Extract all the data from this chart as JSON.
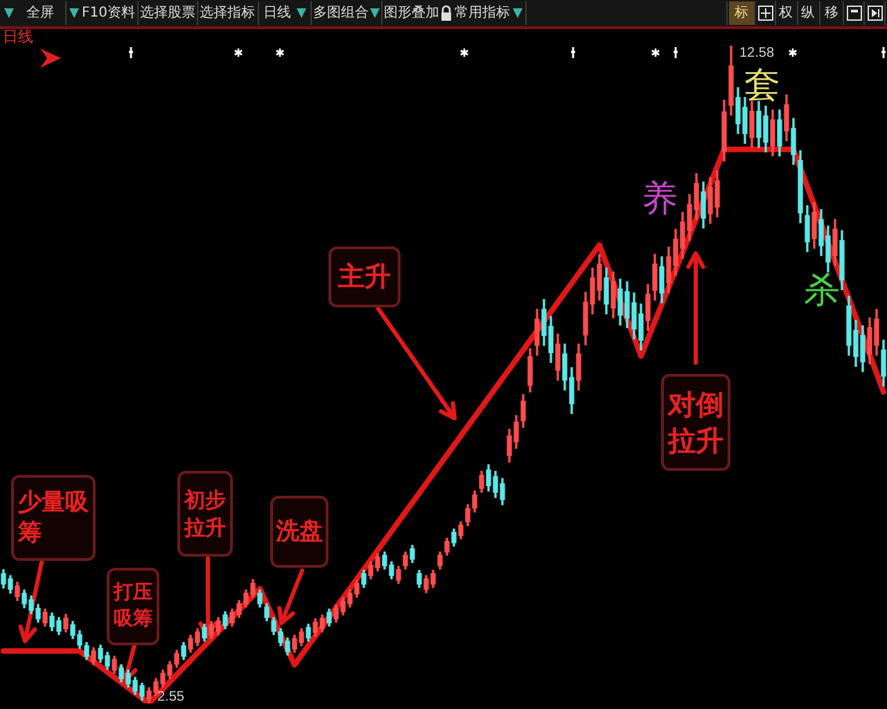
{
  "chart_data": [
    {
      "type": "other",
      "annotations": [
        "全屏",
        "F10资料",
        "选择股票",
        "选择指标",
        "日线",
        "多图组合",
        "图形叠加",
        "常用指标",
        "标",
        "权",
        "纵",
        "移"
      ]
    },
    {
      "type": "candlestick",
      "title": "日线",
      "categories": [
        null,
        null,
        null,
        null,
        null,
        null,
        null,
        null,
        null,
        null,
        null,
        null,
        null,
        null,
        null,
        null,
        null,
        null,
        null,
        null,
        null,
        null,
        null,
        null,
        null,
        null,
        null,
        null,
        null,
        null,
        null,
        null,
        null,
        null,
        null,
        null,
        null,
        null,
        null,
        null,
        null,
        null,
        null,
        null,
        null,
        null,
        null,
        null,
        null,
        null,
        null,
        null,
        null,
        null,
        null,
        null,
        null,
        null,
        null,
        null,
        null,
        null,
        null,
        null,
        null,
        null,
        null,
        null,
        null,
        null,
        null,
        null,
        null,
        null,
        null,
        null,
        null,
        null,
        null,
        null,
        null,
        null,
        null,
        null,
        null,
        null,
        null,
        null,
        null,
        null,
        null,
        null,
        null,
        null,
        null,
        null,
        null,
        null,
        null,
        null,
        null,
        null,
        null,
        null,
        null,
        null,
        null,
        null,
        null,
        null,
        null,
        null,
        null,
        null,
        null,
        null,
        null,
        null,
        null,
        null,
        null,
        null,
        null,
        null,
        null,
        null,
        null,
        null
      ],
      "ohlc": [
        [
          4.53,
          4.59,
          4.31,
          4.37
        ],
        [
          4.45,
          4.5,
          4.23,
          4.29
        ],
        [
          4.18,
          4.4,
          4.12,
          4.34
        ],
        [
          4.23,
          4.28,
          4.01,
          4.07
        ],
        [
          4.13,
          4.19,
          3.92,
          3.97
        ],
        [
          4.0,
          4.06,
          3.79,
          3.84
        ],
        [
          3.78,
          3.99,
          3.73,
          3.94
        ],
        [
          3.88,
          3.93,
          3.66,
          3.72
        ],
        [
          3.81,
          3.86,
          3.6,
          3.65
        ],
        [
          3.69,
          3.91,
          3.64,
          3.85
        ],
        [
          3.75,
          3.8,
          3.54,
          3.59
        ],
        [
          3.6,
          3.66,
          3.39,
          3.44
        ],
        [
          3.43,
          3.48,
          3.22,
          3.27
        ],
        [
          3.19,
          3.4,
          3.14,
          3.35
        ],
        [
          3.39,
          3.44,
          3.18,
          3.23
        ],
        [
          3.28,
          3.33,
          3.07,
          3.12
        ],
        [
          3.06,
          3.27,
          3.01,
          3.22
        ],
        [
          3.09,
          3.14,
          2.88,
          2.93
        ],
        [
          3.01,
          3.06,
          2.8,
          2.85
        ],
        [
          2.9,
          2.95,
          2.69,
          2.74
        ],
        [
          2.82,
          2.86,
          2.6,
          2.66
        ],
        [
          2.62,
          2.79,
          2.55,
          2.74
        ],
        [
          2.72,
          2.93,
          2.67,
          2.88
        ],
        [
          2.85,
          3.06,
          2.8,
          3.01
        ],
        [
          2.98,
          3.19,
          2.93,
          3.14
        ],
        [
          3.15,
          3.36,
          3.1,
          3.31
        ],
        [
          3.43,
          3.48,
          3.22,
          3.27
        ],
        [
          3.38,
          3.59,
          3.33,
          3.54
        ],
        [
          3.48,
          3.69,
          3.43,
          3.64
        ],
        [
          3.71,
          3.76,
          3.5,
          3.55
        ],
        [
          3.59,
          3.8,
          3.54,
          3.75
        ],
        [
          3.65,
          3.86,
          3.6,
          3.81
        ],
        [
          3.9,
          3.95,
          3.69,
          3.74
        ],
        [
          3.78,
          3.99,
          3.73,
          3.94
        ],
        [
          3.91,
          4.12,
          3.86,
          4.07
        ],
        [
          4.07,
          4.28,
          4.02,
          4.23
        ],
        [
          4.22,
          4.44,
          4.17,
          4.38
        ],
        [
          4.23,
          4.28,
          4.02,
          4.07
        ],
        [
          4.02,
          4.07,
          3.81,
          3.86
        ],
        [
          3.81,
          3.86,
          3.6,
          3.65
        ],
        [
          3.64,
          3.69,
          3.43,
          3.48
        ],
        [
          3.5,
          3.55,
          3.29,
          3.34
        ],
        [
          3.38,
          3.59,
          3.33,
          3.54
        ],
        [
          3.48,
          3.69,
          3.43,
          3.64
        ],
        [
          3.71,
          3.76,
          3.5,
          3.55
        ],
        [
          3.63,
          3.84,
          3.58,
          3.79
        ],
        [
          3.69,
          3.9,
          3.64,
          3.85
        ],
        [
          3.94,
          3.99,
          3.73,
          3.78
        ],
        [
          3.84,
          4.05,
          3.79,
          4.0
        ],
        [
          3.95,
          4.16,
          3.9,
          4.11
        ],
        [
          4.07,
          4.28,
          4.02,
          4.23
        ],
        [
          4.22,
          4.43,
          4.17,
          4.38
        ],
        [
          4.53,
          4.58,
          4.32,
          4.37
        ],
        [
          4.5,
          4.71,
          4.45,
          4.66
        ],
        [
          4.62,
          4.83,
          4.57,
          4.78
        ],
        [
          4.81,
          4.86,
          4.6,
          4.65
        ],
        [
          4.66,
          4.71,
          4.45,
          4.5
        ],
        [
          4.43,
          4.64,
          4.38,
          4.59
        ],
        [
          4.65,
          4.86,
          4.6,
          4.81
        ],
        [
          4.91,
          4.96,
          4.7,
          4.75
        ],
        [
          4.53,
          4.58,
          4.32,
          4.37
        ],
        [
          4.29,
          4.5,
          4.24,
          4.45
        ],
        [
          4.37,
          4.58,
          4.32,
          4.53
        ],
        [
          4.65,
          4.86,
          4.6,
          4.81
        ],
        [
          4.86,
          5.07,
          4.81,
          5.02
        ],
        [
          5.16,
          5.21,
          4.95,
          5.0
        ],
        [
          5.11,
          5.32,
          5.06,
          5.27
        ],
        [
          5.32,
          5.58,
          5.26,
          5.52
        ],
        [
          5.53,
          5.79,
          5.47,
          5.73
        ],
        [
          5.83,
          6.09,
          5.77,
          6.03
        ],
        [
          6.11,
          6.19,
          5.79,
          5.87
        ],
        [
          6.01,
          6.09,
          5.69,
          5.77
        ],
        [
          5.9,
          5.98,
          5.58,
          5.66
        ],
        [
          6.33,
          6.73,
          6.23,
          6.63
        ],
        [
          6.54,
          6.94,
          6.44,
          6.84
        ],
        [
          6.86,
          7.26,
          6.76,
          7.16
        ],
        [
          7.4,
          7.96,
          7.3,
          7.84
        ],
        [
          8.01,
          8.56,
          7.86,
          8.41
        ],
        [
          8.56,
          8.71,
          8.01,
          8.16
        ],
        [
          8.3,
          8.45,
          7.75,
          7.9
        ],
        [
          7.63,
          8.18,
          7.48,
          8.03
        ],
        [
          7.88,
          8.03,
          7.33,
          7.48
        ],
        [
          7.52,
          7.67,
          6.97,
          7.12
        ],
        [
          7.48,
          8.03,
          7.33,
          7.88
        ],
        [
          8.17,
          8.82,
          8.02,
          8.67
        ],
        [
          8.64,
          9.19,
          8.49,
          9.04
        ],
        [
          8.85,
          9.4,
          8.7,
          9.25
        ],
        [
          9.04,
          9.19,
          8.49,
          8.64
        ],
        [
          8.58,
          9.13,
          8.43,
          8.98
        ],
        [
          8.87,
          9.02,
          8.32,
          8.47
        ],
        [
          8.83,
          8.98,
          8.28,
          8.43
        ],
        [
          8.66,
          8.81,
          8.11,
          8.26
        ],
        [
          8.49,
          8.64,
          7.94,
          8.09
        ],
        [
          8.39,
          8.94,
          8.24,
          8.79
        ],
        [
          8.85,
          9.4,
          8.7,
          9.25
        ],
        [
          9.21,
          9.36,
          8.66,
          8.81
        ],
        [
          8.96,
          9.51,
          8.81,
          9.36
        ],
        [
          9.23,
          9.78,
          9.08,
          9.63
        ],
        [
          9.49,
          10.04,
          9.34,
          9.89
        ],
        [
          9.76,
          10.31,
          9.61,
          10.16
        ],
        [
          10.08,
          10.63,
          9.93,
          10.48
        ],
        [
          10.35,
          10.5,
          9.8,
          9.95
        ],
        [
          10.02,
          10.57,
          9.87,
          10.42
        ],
        [
          10.12,
          10.67,
          9.97,
          10.52
        ],
        [
          10.97,
          11.75,
          10.82,
          11.57
        ],
        [
          11.67,
          12.58,
          11.52,
          12.27
        ],
        [
          11.79,
          11.94,
          11.24,
          11.39
        ],
        [
          11.64,
          11.79,
          11.09,
          11.24
        ],
        [
          11.18,
          11.73,
          11.03,
          11.58
        ],
        [
          11.58,
          11.73,
          11.03,
          11.18
        ],
        [
          11.51,
          11.66,
          10.96,
          11.11
        ],
        [
          11.05,
          11.6,
          10.9,
          11.45
        ],
        [
          11.45,
          11.6,
          10.9,
          11.05
        ],
        [
          11.28,
          11.83,
          11.13,
          11.68
        ],
        [
          11.32,
          11.47,
          10.77,
          10.92
        ],
        [
          10.83,
          10.98,
          9.88,
          10.03
        ],
        [
          9.99,
          10.14,
          9.44,
          9.59
        ],
        [
          9.64,
          10.19,
          9.49,
          10.04
        ],
        [
          9.93,
          10.08,
          9.38,
          9.53
        ],
        [
          9.68,
          9.83,
          9.13,
          9.28
        ],
        [
          9.38,
          9.93,
          9.23,
          9.78
        ],
        [
          9.61,
          9.76,
          8.86,
          9.01
        ],
        [
          8.61,
          8.76,
          7.86,
          8.01
        ],
        [
          8.24,
          8.39,
          7.69,
          7.84
        ],
        [
          8.16,
          8.31,
          7.61,
          7.76
        ],
        [
          7.88,
          8.43,
          7.73,
          8.28
        ],
        [
          8.01,
          8.56,
          7.86,
          8.41
        ],
        [
          7.94,
          8.09,
          7.39,
          7.54
        ]
      ],
      "colors": [
        "#5ae8e8",
        "#5ae8e8",
        "#ff4c4c",
        "#5ae8e8",
        "#5ae8e8",
        "#5ae8e8",
        "#ff4c4c",
        "#5ae8e8",
        "#5ae8e8",
        "#ff4c4c",
        "#5ae8e8",
        "#5ae8e8",
        "#5ae8e8",
        "#ff4c4c",
        "#5ae8e8",
        "#5ae8e8",
        "#ff4c4c",
        "#5ae8e8",
        "#5ae8e8",
        "#5ae8e8",
        "#5ae8e8",
        "#ff4c4c",
        "#ff4c4c",
        "#ff4c4c",
        "#ff4c4c",
        "#ff4c4c",
        "#5ae8e8",
        "#ff4c4c",
        "#ff4c4c",
        "#5ae8e8",
        "#ff4c4c",
        "#ff4c4c",
        "#5ae8e8",
        "#ff4c4c",
        "#ff4c4c",
        "#ff4c4c",
        "#ff4c4c",
        "#5ae8e8",
        "#5ae8e8",
        "#5ae8e8",
        "#5ae8e8",
        "#5ae8e8",
        "#ff4c4c",
        "#ff4c4c",
        "#5ae8e8",
        "#ff4c4c",
        "#ff4c4c",
        "#5ae8e8",
        "#ff4c4c",
        "#ff4c4c",
        "#ff4c4c",
        "#ff4c4c",
        "#5ae8e8",
        "#ff4c4c",
        "#ff4c4c",
        "#5ae8e8",
        "#5ae8e8",
        "#ff4c4c",
        "#ff4c4c",
        "#5ae8e8",
        "#5ae8e8",
        "#ff4c4c",
        "#ff4c4c",
        "#ff4c4c",
        "#ff4c4c",
        "#5ae8e8",
        "#ff4c4c",
        "#ff4c4c",
        "#ff4c4c",
        "#ff4c4c",
        "#5ae8e8",
        "#5ae8e8",
        "#5ae8e8",
        "#ff4c4c",
        "#ff4c4c",
        "#ff4c4c",
        "#ff4c4c",
        "#ff4c4c",
        "#5ae8e8",
        "#5ae8e8",
        "#ff4c4c",
        "#5ae8e8",
        "#5ae8e8",
        "#ff4c4c",
        "#ff4c4c",
        "#ff4c4c",
        "#ff4c4c",
        "#5ae8e8",
        "#ff4c4c",
        "#5ae8e8",
        "#5ae8e8",
        "#5ae8e8",
        "#5ae8e8",
        "#ff4c4c",
        "#ff4c4c",
        "#5ae8e8",
        "#ff4c4c",
        "#ff4c4c",
        "#ff4c4c",
        "#ff4c4c",
        "#ff4c4c",
        "#5ae8e8",
        "#ff4c4c",
        "#ff4c4c",
        "#ff4c4c",
        "#ff4c4c",
        "#5ae8e8",
        "#5ae8e8",
        "#ff4c4c",
        "#5ae8e8",
        "#5ae8e8",
        "#ff4c4c",
        "#5ae8e8",
        "#ff4c4c",
        "#5ae8e8",
        "#5ae8e8",
        "#5ae8e8",
        "#ff4c4c",
        "#5ae8e8",
        "#5ae8e8",
        "#ff4c4c",
        "#5ae8e8",
        "#5ae8e8",
        "#5ae8e8",
        "#5ae8e8",
        "#ff4c4c",
        "#ff4c4c",
        "#5ae8e8"
      ],
      "series": [
        {
          "type": "line",
          "color": "#e01818",
          "values": [
            3.35,
            null,
            null,
            null,
            null,
            null,
            null,
            null,
            null,
            null,
            null,
            3.35,
            null,
            null,
            null,
            null,
            null,
            null,
            null,
            null,
            null,
            2.55,
            null,
            null,
            null,
            null,
            null,
            null,
            null,
            null,
            null,
            null,
            null,
            null,
            null,
            null,
            null,
            4.3,
            null,
            null,
            null,
            null,
            3.14,
            null,
            null,
            null,
            null,
            null,
            null,
            null,
            null,
            null,
            null,
            null,
            null,
            null,
            null,
            null,
            null,
            null,
            null,
            null,
            null,
            null,
            null,
            null,
            null,
            null,
            null,
            null,
            null,
            null,
            null,
            null,
            null,
            null,
            null,
            null,
            null,
            null,
            null,
            null,
            null,
            null,
            null,
            null,
            9.54,
            null,
            null,
            null,
            null,
            null,
            7.85,
            null,
            null,
            null,
            null,
            null,
            null,
            null,
            null,
            null,
            null,
            null,
            11.0,
            null,
            null,
            null,
            null,
            null,
            null,
            null,
            null,
            null,
            11.0,
            null,
            null,
            null,
            null,
            null,
            null,
            null,
            null,
            null,
            null,
            null,
            null,
            7.3
          ]
        }
      ],
      "annotations": [
        "少量吸筹",
        "打压吸筹",
        "初步拉升",
        "洗盘",
        "主升",
        "对倒拉升",
        "养",
        "套",
        "杀",
        "12.58",
        "2.55"
      ],
      "tick_labels": false
    }
  ]
}
